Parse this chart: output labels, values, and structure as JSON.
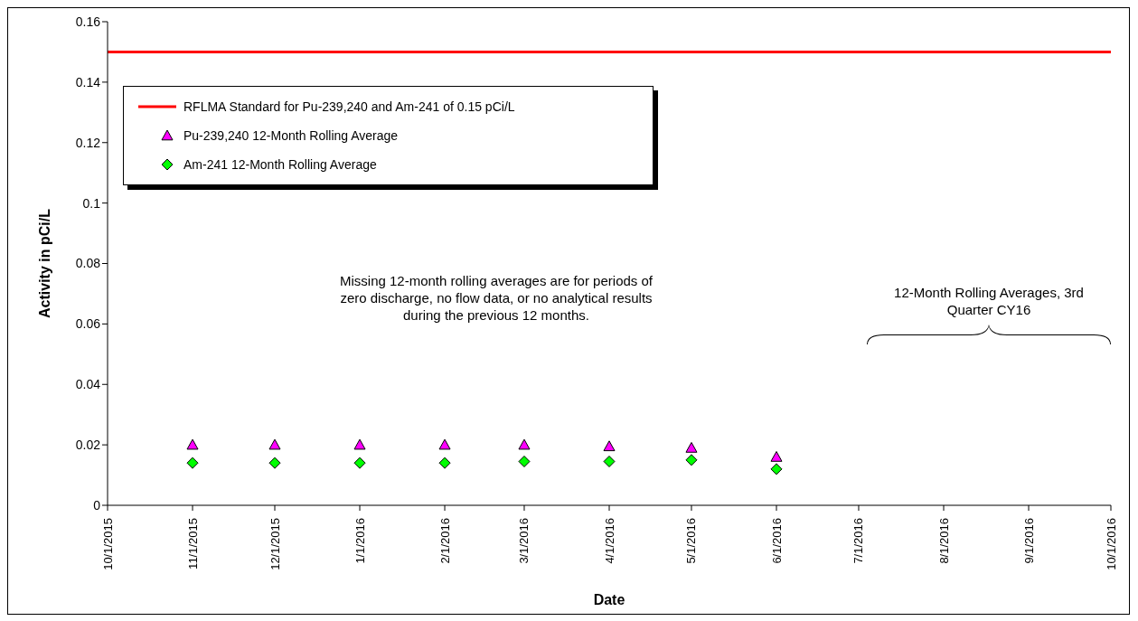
{
  "chart_data": {
    "type": "scatter",
    "xlabel": "Date",
    "ylabel": "Activity in pCi/L",
    "xlim": [
      "2015-10-01",
      "2016-10-01"
    ],
    "xticks": [
      {
        "value": "2015-10-01",
        "label": "10/1/2015"
      },
      {
        "value": "2015-11-01",
        "label": "11/1/2015"
      },
      {
        "value": "2015-12-01",
        "label": "12/1/2015"
      },
      {
        "value": "2016-01-01",
        "label": "1/1/2016"
      },
      {
        "value": "2016-02-01",
        "label": "2/1/2016"
      },
      {
        "value": "2016-03-01",
        "label": "3/1/2016"
      },
      {
        "value": "2016-04-01",
        "label": "4/1/2016"
      },
      {
        "value": "2016-05-01",
        "label": "5/1/2016"
      },
      {
        "value": "2016-06-01",
        "label": "6/1/2016"
      },
      {
        "value": "2016-07-01",
        "label": "7/1/2016"
      },
      {
        "value": "2016-08-01",
        "label": "8/1/2016"
      },
      {
        "value": "2016-09-01",
        "label": "9/1/2016"
      },
      {
        "value": "2016-10-01",
        "label": "10/1/2016"
      }
    ],
    "ylim": [
      0,
      0.16
    ],
    "yticks": [
      0,
      0.02,
      0.04,
      0.06,
      0.08,
      0.1,
      0.12,
      0.14,
      0.16
    ],
    "x": [
      "2015-11-01",
      "2015-12-01",
      "2016-01-01",
      "2016-02-01",
      "2016-03-01",
      "2016-04-01",
      "2016-05-01",
      "2016-06-01"
    ],
    "series": [
      {
        "name": "Pu-239,240 12-Month Rolling Average",
        "color": "#ff00ff",
        "marker": "triangle",
        "values": [
          0.02,
          0.02,
          0.02,
          0.02,
          0.02,
          0.0195,
          0.019,
          0.016
        ]
      },
      {
        "name": "Am-241 12-Month Rolling Average",
        "color": "#00ff00",
        "marker": "diamond",
        "values": [
          0.014,
          0.014,
          0.014,
          0.014,
          0.0145,
          0.0145,
          0.015,
          0.012
        ]
      }
    ],
    "ref_lines": [
      {
        "axis": "y",
        "value": 0.15,
        "label": "RFLMA Standard for Pu-239,240 and Am-241 of 0.15 pCi/L",
        "color": "#ff0000",
        "line_style": "solid"
      }
    ],
    "legend": "top left",
    "annotations": [
      "Missing 12-month rolling averages are for periods of zero discharge, no flow data, or no analytical results during the previous 12 months.",
      "12-Month Rolling Averages, 3rd Quarter CY16"
    ]
  }
}
